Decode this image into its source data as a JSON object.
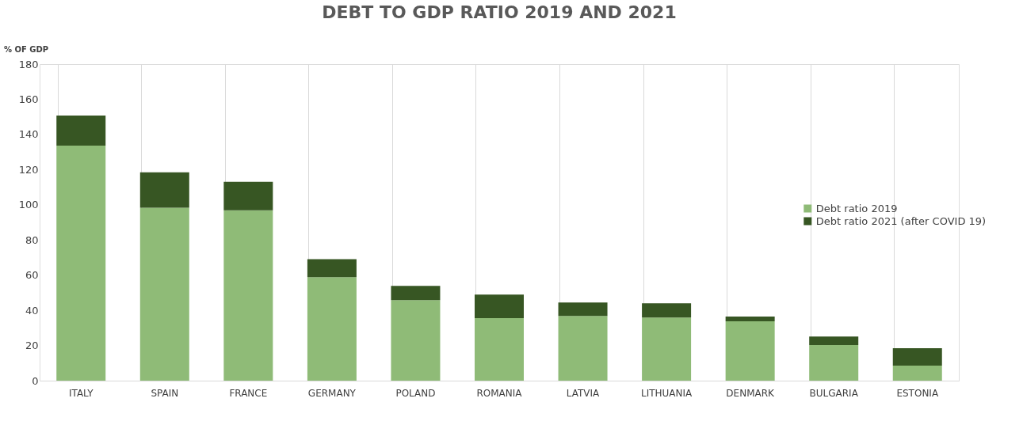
{
  "chart_data": {
    "type": "bar",
    "title": "DEBT TO GDP RATIO 2019 AND 2021",
    "ylabel": "% OF GDP",
    "categories": [
      "ITALY",
      "SPAIN",
      "FRANCE",
      "GERMANY",
      "POLAND",
      "ROMANIA",
      "LATVIA",
      "LITHUANIA",
      "DENMARK",
      "BULGARIA",
      "ESTONIA"
    ],
    "stacked": true,
    "series": [
      {
        "name": "Debt ratio 2019",
        "color": "#8fbb77",
        "values": [
          133.7,
          98.3,
          96.9,
          58.8,
          45.8,
          35.5,
          36.8,
          35.9,
          33.7,
          20.2,
          8.5
        ]
      },
      {
        "name": "Debt ratio 2021 (after COVID 19)",
        "color": "#375623",
        "values": [
          17.1,
          20.2,
          16.2,
          10.3,
          8.1,
          13.4,
          7.6,
          8.1,
          2.7,
          4.9,
          9.9
        ]
      }
    ],
    "ylim": [
      0,
      180
    ],
    "yticks": [
      0,
      20,
      40,
      60,
      80,
      100,
      120,
      140,
      160,
      180
    ],
    "grid": "x",
    "legend": "right"
  }
}
